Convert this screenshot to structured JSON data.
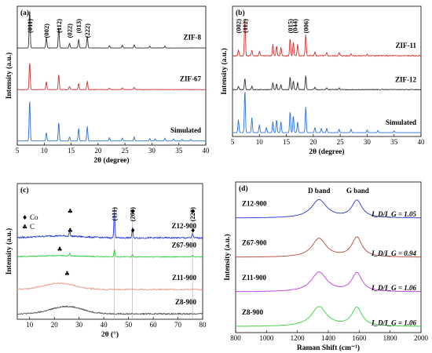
{
  "chart_data": [
    {
      "type": "line",
      "panel": "(a)",
      "xlabel": "2θ (degree)",
      "ylabel": "Intensity (a.u.)",
      "xlim": [
        5,
        40
      ],
      "xticks": [
        "5",
        "10",
        "15",
        "20",
        "25",
        "30",
        "35",
        "40"
      ],
      "series": [
        {
          "name": "ZIF-8",
          "color": "#333333",
          "offset": 0.7,
          "scale": 0.28,
          "noise": 0.003,
          "peaks": [
            [
              7.3,
              1.0
            ],
            [
              10.4,
              0.28
            ],
            [
              12.7,
              0.55
            ],
            [
              14.7,
              0.12
            ],
            [
              16.4,
              0.22
            ],
            [
              18.0,
              0.3
            ],
            [
              22.1,
              0.06
            ],
            [
              24.5,
              0.07
            ],
            [
              26.7,
              0.08
            ],
            [
              29.6,
              0.05
            ],
            [
              32.4,
              0.05
            ]
          ]
        },
        {
          "name": "ZIF-67",
          "color": "#cc3333",
          "offset": 0.4,
          "scale": 0.2,
          "noise": 0.008,
          "peaks": [
            [
              7.3,
              1.0
            ],
            [
              10.4,
              0.28
            ],
            [
              12.7,
              0.55
            ],
            [
              14.7,
              0.12
            ],
            [
              16.4,
              0.22
            ],
            [
              18.0,
              0.3
            ],
            [
              22.1,
              0.06
            ],
            [
              24.5,
              0.07
            ],
            [
              26.7,
              0.08
            ]
          ]
        },
        {
          "name": "Simulated",
          "color": "#2a6fd6",
          "offset": 0.03,
          "scale": 0.3,
          "noise": 0.0,
          "peaks": [
            [
              7.3,
              1.0
            ],
            [
              10.4,
              0.2
            ],
            [
              12.7,
              0.45
            ],
            [
              14.7,
              0.1
            ],
            [
              16.4,
              0.3
            ],
            [
              18.0,
              0.35
            ],
            [
              22.1,
              0.08
            ],
            [
              24.5,
              0.07
            ],
            [
              26.7,
              0.1
            ],
            [
              29.6,
              0.06
            ],
            [
              30.6,
              0.05
            ],
            [
              32.4,
              0.07
            ],
            [
              34.0,
              0.05
            ],
            [
              35.6,
              0.04
            ],
            [
              37.2,
              0.04
            ]
          ]
        }
      ],
      "peak_labels": [
        {
          "text": "(011)",
          "x": 7.3
        },
        {
          "text": "(002)",
          "x": 10.4
        },
        {
          "text": "(112)",
          "x": 12.7
        },
        {
          "text": "(022)",
          "x": 14.7
        },
        {
          "text": "(013)",
          "x": 16.4
        },
        {
          "text": "(222)",
          "x": 18.0
        }
      ]
    },
    {
      "type": "line",
      "panel": "(b)",
      "xlabel": "2θ (degree)",
      "ylabel": "Intensity (a.u.)",
      "xlim": [
        5,
        40
      ],
      "xticks": [
        "5",
        "10",
        "15",
        "20",
        "25",
        "30",
        "35",
        "40"
      ],
      "series": [
        {
          "name": "ZIF-11",
          "color": "#cc3333",
          "offset": 0.62,
          "scale": 0.3,
          "noise": 0.012,
          "peaks": [
            [
              6.1,
              0.15
            ],
            [
              7.3,
              1.0
            ],
            [
              8.6,
              0.15
            ],
            [
              10.0,
              0.12
            ],
            [
              12.5,
              0.3
            ],
            [
              13.2,
              0.25
            ],
            [
              14.0,
              0.22
            ],
            [
              15.7,
              0.45
            ],
            [
              16.3,
              0.35
            ],
            [
              17.1,
              0.3
            ],
            [
              18.6,
              0.55
            ],
            [
              20.3,
              0.1
            ],
            [
              22.5,
              0.08
            ],
            [
              24.8,
              0.08
            ],
            [
              27.0,
              0.06
            ],
            [
              30.0,
              0.05
            ]
          ]
        },
        {
          "name": "ZIF-12",
          "color": "#333333",
          "offset": 0.36,
          "scale": 0.22,
          "noise": 0.012,
          "peaks": [
            [
              6.1,
              0.12
            ],
            [
              7.3,
              0.4
            ],
            [
              8.6,
              0.12
            ],
            [
              12.5,
              0.25
            ],
            [
              13.2,
              0.2
            ],
            [
              14.0,
              0.18
            ],
            [
              15.7,
              0.45
            ],
            [
              16.3,
              0.3
            ],
            [
              17.1,
              0.25
            ],
            [
              18.6,
              0.5
            ],
            [
              20.3,
              0.08
            ],
            [
              22.5,
              0.06
            ],
            [
              24.8,
              0.06
            ]
          ]
        },
        {
          "name": "Simulated",
          "color": "#2a6fd6",
          "offset": 0.03,
          "scale": 0.33,
          "noise": 0.0,
          "peaks": [
            [
              6.1,
              0.3
            ],
            [
              7.3,
              1.0
            ],
            [
              8.6,
              0.35
            ],
            [
              10.0,
              0.18
            ],
            [
              11.3,
              0.12
            ],
            [
              12.5,
              0.25
            ],
            [
              13.2,
              0.3
            ],
            [
              14.0,
              0.25
            ],
            [
              15.7,
              0.5
            ],
            [
              16.3,
              0.4
            ],
            [
              17.1,
              0.25
            ],
            [
              18.6,
              0.6
            ],
            [
              20.3,
              0.12
            ],
            [
              21.5,
              0.1
            ],
            [
              22.5,
              0.1
            ],
            [
              24.8,
              0.08
            ],
            [
              27.0,
              0.08
            ],
            [
              30.0,
              0.06
            ],
            [
              32.0,
              0.05
            ],
            [
              35.0,
              0.04
            ]
          ]
        }
      ],
      "peak_labels": [
        {
          "text": "(002)",
          "x": 6.1
        },
        {
          "text": "(112)",
          "x": 7.3
        },
        {
          "text": "(015)",
          "x": 15.7
        },
        {
          "text": "(044)",
          "x": 16.6
        },
        {
          "text": "(006)",
          "x": 18.6
        }
      ]
    },
    {
      "type": "line",
      "panel": "(c)",
      "xlabel": "2θ (°)",
      "ylabel": "Intensity (a.u.)",
      "xlim": [
        5,
        80
      ],
      "xticks": [
        "10",
        "20",
        "30",
        "40",
        "50",
        "60",
        "70",
        "80"
      ],
      "legend": [
        "Co",
        "C"
      ],
      "series": [
        {
          "name": "Z12-900",
          "color": "#2f3fd6",
          "offset": 0.6,
          "scale": 0.3,
          "noise": 0.02,
          "peaks": [
            [
              26.2,
              0.12
            ],
            [
              44.3,
              0.75
            ],
            [
              51.6,
              0.25
            ],
            [
              75.9,
              0.12
            ]
          ],
          "hump": [
            22,
            0.05,
            12
          ]
        },
        {
          "name": "Z67-900",
          "color": "#2ecc40",
          "offset": 0.46,
          "scale": 0.22,
          "noise": 0.015,
          "peaks": [
            [
              26.2,
              0.1
            ],
            [
              44.3,
              0.25
            ],
            [
              51.6,
              0.08
            ],
            [
              75.9,
              0.05
            ]
          ],
          "hump": [
            22,
            0.04,
            12
          ]
        },
        {
          "name": "Z11-900",
          "color": "#e8a090",
          "offset": 0.22,
          "scale": 0.25,
          "noise": 0.02,
          "peaks": [],
          "hump": [
            22,
            0.18,
            9
          ]
        },
        {
          "name": "Z8-900",
          "color": "#555555",
          "offset": 0.04,
          "scale": 0.25,
          "noise": 0.02,
          "peaks": [],
          "hump": [
            25,
            0.22,
            9
          ]
        }
      ],
      "peak_labels": [
        {
          "text": "(111)",
          "x": 44.3
        },
        {
          "text": "(200)",
          "x": 51.6
        },
        {
          "text": "(220)",
          "x": 75.9
        }
      ]
    },
    {
      "type": "line",
      "panel": "(d)",
      "xlabel": "Raman Shift  (cm⁻¹)",
      "ylabel": "Intensity (a.u.)",
      "xlim": [
        800,
        2000
      ],
      "xticks": [
        "800",
        "1000",
        "1200",
        "1400",
        "1600",
        "1800",
        "2000"
      ],
      "band_labels": [
        {
          "text": "D band",
          "x": 1340
        },
        {
          "text": "G band",
          "x": 1590
        }
      ],
      "series": [
        {
          "name": "Z12-900",
          "ratio": "I_D/I_G = 1.05",
          "color": "#2a3cc8",
          "offset": 0.76,
          "scale": 0.12,
          "noise": 0.006,
          "peaks": [
            [
              1340,
              1.0,
              60
            ],
            [
              1585,
              0.95,
              40
            ]
          ]
        },
        {
          "name": "Z67-900",
          "ratio": "I_D/I_G = 0.94",
          "color": "#b84a3c",
          "offset": 0.5,
          "scale": 0.13,
          "noise": 0.006,
          "peaks": [
            [
              1340,
              0.95,
              55
            ],
            [
              1585,
              1.0,
              40
            ]
          ]
        },
        {
          "name": "Z11-900",
          "ratio": "I_D/I_G = 1.06",
          "color": "#c040e0",
          "offset": 0.27,
          "scale": 0.13,
          "noise": 0.012,
          "peaks": [
            [
              1340,
              1.0,
              60
            ],
            [
              1585,
              0.94,
              40
            ]
          ]
        },
        {
          "name": "Z8-900",
          "ratio": "I_D/I_G = 1.06",
          "color": "#40d040",
          "offset": 0.04,
          "scale": 0.13,
          "noise": 0.01,
          "peaks": [
            [
              1340,
              1.0,
              60
            ],
            [
              1585,
              0.94,
              40
            ]
          ]
        }
      ]
    }
  ]
}
